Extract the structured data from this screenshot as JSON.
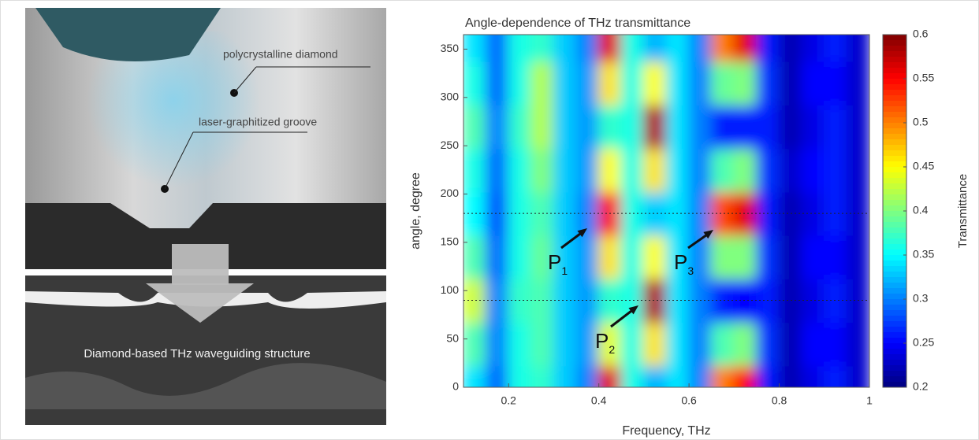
{
  "panel_labels": {
    "top": [
      "polycrystalline diamond",
      "laser-graphitized groove"
    ],
    "bottom": "Diamond-based THz waveguiding structure"
  },
  "chart_data": {
    "type": "heatmap",
    "title": "Angle-dependence of THz transmittance",
    "x_label": "Frequency, THz",
    "y_label": "angle, degree",
    "colorbar_label": "Transmittance",
    "x": [
      0.125,
      0.175,
      0.225,
      0.275,
      0.325,
      0.375,
      0.425,
      0.475,
      0.525,
      0.575,
      0.625,
      0.675,
      0.725,
      0.775,
      0.825,
      0.875,
      0.925,
      0.975
    ],
    "y": [
      0,
      45,
      90,
      135,
      180,
      225,
      270,
      315,
      360
    ],
    "z": [
      [
        0.34,
        0.29,
        0.36,
        0.37,
        0.33,
        0.3,
        0.56,
        0.36,
        0.32,
        0.34,
        0.3,
        0.5,
        0.55,
        0.26,
        0.22,
        0.24,
        0.26,
        0.23
      ],
      [
        0.38,
        0.3,
        0.36,
        0.38,
        0.33,
        0.31,
        0.44,
        0.36,
        0.46,
        0.34,
        0.3,
        0.38,
        0.4,
        0.27,
        0.22,
        0.25,
        0.25,
        0.23
      ],
      [
        0.43,
        0.3,
        0.37,
        0.38,
        0.33,
        0.31,
        0.37,
        0.36,
        0.58,
        0.34,
        0.3,
        0.26,
        0.25,
        0.26,
        0.22,
        0.24,
        0.26,
        0.23
      ],
      [
        0.38,
        0.29,
        0.36,
        0.39,
        0.33,
        0.31,
        0.46,
        0.36,
        0.45,
        0.34,
        0.3,
        0.4,
        0.4,
        0.27,
        0.22,
        0.25,
        0.25,
        0.23
      ],
      [
        0.35,
        0.28,
        0.36,
        0.38,
        0.33,
        0.3,
        0.55,
        0.36,
        0.33,
        0.34,
        0.3,
        0.52,
        0.56,
        0.26,
        0.22,
        0.24,
        0.26,
        0.23
      ],
      [
        0.36,
        0.29,
        0.36,
        0.4,
        0.33,
        0.31,
        0.45,
        0.36,
        0.46,
        0.34,
        0.3,
        0.38,
        0.4,
        0.27,
        0.23,
        0.25,
        0.26,
        0.23
      ],
      [
        0.38,
        0.3,
        0.37,
        0.42,
        0.33,
        0.31,
        0.37,
        0.36,
        0.58,
        0.34,
        0.3,
        0.26,
        0.26,
        0.26,
        0.22,
        0.24,
        0.26,
        0.23
      ],
      [
        0.36,
        0.29,
        0.36,
        0.42,
        0.33,
        0.31,
        0.46,
        0.36,
        0.45,
        0.34,
        0.3,
        0.39,
        0.4,
        0.27,
        0.22,
        0.25,
        0.25,
        0.23
      ],
      [
        0.34,
        0.29,
        0.36,
        0.37,
        0.33,
        0.3,
        0.56,
        0.36,
        0.32,
        0.34,
        0.3,
        0.5,
        0.56,
        0.26,
        0.22,
        0.24,
        0.26,
        0.23
      ]
    ],
    "xlim": [
      0.1,
      1
    ],
    "ylim": [
      0,
      365
    ],
    "clim": [
      0.2,
      0.6
    ],
    "xticks": [
      0.2,
      0.4,
      0.6,
      0.8,
      1
    ],
    "yticks": [
      0,
      50,
      100,
      150,
      200,
      250,
      300,
      350
    ],
    "cticks": [
      0.2,
      0.25,
      0.3,
      0.35,
      0.4,
      0.45,
      0.5,
      0.55,
      0.6
    ],
    "colormap": "jet",
    "reference_lines": [
      90,
      180
    ],
    "annotations": [
      {
        "text": "P",
        "sub": "1"
      },
      {
        "text": "P",
        "sub": "2"
      },
      {
        "text": "P",
        "sub": "3"
      }
    ]
  }
}
